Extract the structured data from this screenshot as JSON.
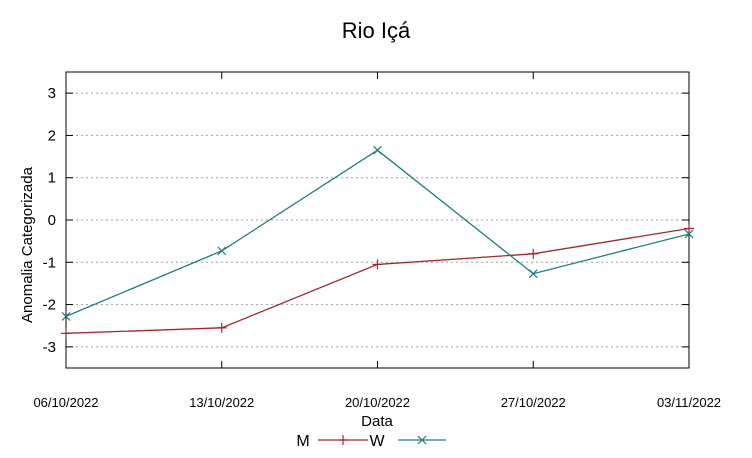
{
  "chart_data": {
    "type": "line",
    "title": "Rio Içá",
    "xlabel": "Data",
    "ylabel": "Anomalia Categorizada",
    "x": [
      "06/10/2022",
      "13/10/2022",
      "20/10/2022",
      "27/10/2022",
      "03/11/2022"
    ],
    "ylim": [
      -3.5,
      3.5
    ],
    "yticks": [
      "3",
      "2",
      "1",
      "0",
      "-1",
      "-2",
      "-3"
    ],
    "ytick_values": [
      3,
      2,
      1,
      0,
      -1,
      -2,
      -3
    ],
    "grid": "horizontal",
    "legend_position": "bottom",
    "series": [
      {
        "name": "M",
        "marker": "+",
        "color": "#a0292c",
        "values": [
          -2.68,
          -2.55,
          -1.05,
          -0.8,
          -0.2
        ]
      },
      {
        "name": "W",
        "marker": "x",
        "color": "#1f7f80",
        "values": [
          -2.28,
          -0.73,
          1.65,
          -1.27,
          -0.33
        ]
      }
    ]
  }
}
